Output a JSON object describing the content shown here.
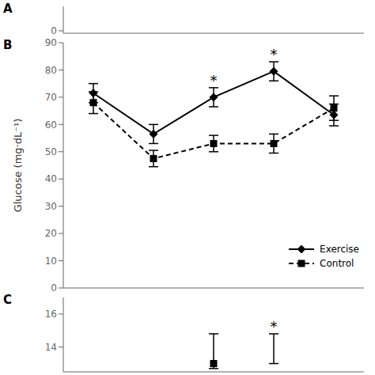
{
  "chart_data": [
    {
      "type": "line",
      "title": "A",
      "xlim": [
        0,
        4
      ],
      "ylim": [
        -1,
        10
      ],
      "yticks": [
        0
      ],
      "tick_labels": "y"
    },
    {
      "type": "line",
      "title": "B",
      "ylabel": "Glucose (mg·dL⁻¹)",
      "x": [
        0,
        1,
        2,
        3,
        4
      ],
      "xlim": [
        -0.5,
        4.5
      ],
      "ylim": [
        0,
        90
      ],
      "yticks": [
        0,
        10,
        20,
        30,
        40,
        50,
        60,
        70,
        80,
        90
      ],
      "tick_labels": "y",
      "legend": "lower right",
      "series": [
        {
          "name": "Exercise",
          "color": "#000000",
          "marker": "diamond",
          "line_style": "solid",
          "values": [
            71.5,
            56.5,
            70.0,
            79.5,
            63.5
          ],
          "yerr": [
            3.5,
            3.5,
            3.5,
            3.5,
            4.0
          ]
        },
        {
          "name": "Control",
          "color": "#000000",
          "marker": "square",
          "line_style": "dashed",
          "values": [
            68.0,
            47.5,
            53.0,
            53.0,
            66.0
          ],
          "yerr": [
            4.0,
            3.0,
            3.0,
            3.5,
            4.5
          ]
        }
      ],
      "annotations": [
        {
          "x": 2,
          "text": "*"
        },
        {
          "x": 3,
          "text": "*"
        }
      ]
    },
    {
      "type": "line",
      "title": "C",
      "x": [
        0,
        1,
        2,
        3,
        4
      ],
      "xlim": [
        -0.5,
        4.5
      ],
      "ylim": [
        12.5,
        17.0
      ],
      "yticks": [
        14,
        16
      ],
      "tick_labels": "y",
      "series": [
        {
          "color": "#000000",
          "marker": "square",
          "line_style": "none",
          "values": [
            null,
            null,
            13.0,
            null,
            null
          ],
          "yerr_minus": [
            null,
            null,
            0.3,
            null,
            null
          ],
          "yerr_plus": [
            null,
            null,
            1.8,
            null,
            null
          ]
        },
        {
          "color": "#000000",
          "marker": "none",
          "line_style": "none",
          "values": [
            null,
            null,
            null,
            13.0,
            null
          ],
          "yerr_minus": [
            null,
            null,
            null,
            0.0,
            null
          ],
          "yerr_plus": [
            null,
            null,
            null,
            1.8,
            null
          ]
        }
      ],
      "annotations": [
        {
          "x": 3,
          "text": "*"
        }
      ]
    }
  ]
}
